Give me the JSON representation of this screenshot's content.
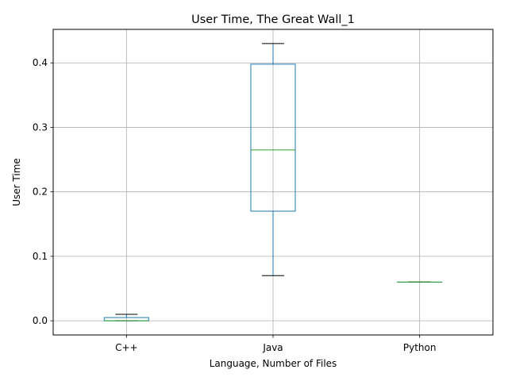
{
  "chart_data": {
    "type": "box",
    "title": "User Time, The Great Wall_1",
    "xlabel": "Language, Number of Files",
    "ylabel": "User Time",
    "categories": [
      "C++",
      "Java",
      "Python"
    ],
    "y_ticks": [
      "0.0",
      "0.1",
      "0.2",
      "0.3",
      "0.4"
    ],
    "ylim": [
      -0.022,
      0.452
    ],
    "grid": true,
    "boxes": [
      {
        "name": "C++",
        "whisker_low": 0.0,
        "q1": 0.0,
        "median": 0.0,
        "q3": 0.005,
        "whisker_high": 0.01
      },
      {
        "name": "Java",
        "whisker_low": 0.07,
        "q1": 0.17,
        "median": 0.265,
        "q3": 0.398,
        "whisker_high": 0.43
      },
      {
        "name": "Python",
        "whisker_low": 0.06,
        "q1": 0.06,
        "median": 0.06,
        "q3": 0.06,
        "whisker_high": 0.06
      }
    ],
    "colors": {
      "box": "#1f77b4",
      "median": "#2ca02c",
      "whisker": "#1f77b4",
      "cap": "#000000",
      "grid": "#b0b0b0"
    }
  }
}
